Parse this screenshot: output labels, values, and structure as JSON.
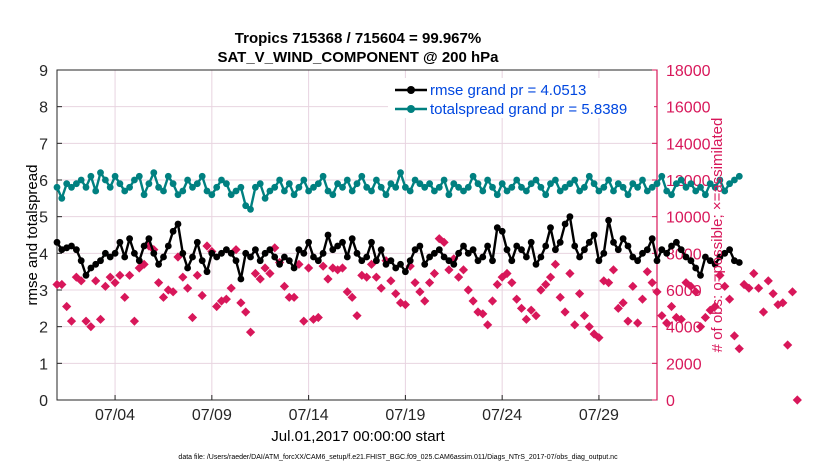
{
  "chart_data": {
    "type": "line",
    "title": "Tropics 715368 / 715604 = 99.967%",
    "subtitle": "SAT_V_WIND_COMPONENT @ 200 hPa",
    "xlabel": "Jul.01,2017 00:00:00 start",
    "ylabel_left": "rmse and totalspread",
    "ylabel_right": "# of obs: o=possible; ×=assimilated",
    "x_range_days": [
      1,
      32
    ],
    "ylim_left": [
      0,
      9
    ],
    "ylim_right": [
      0,
      18000
    ],
    "left_ticks": [
      "0",
      "1",
      "2",
      "3",
      "4",
      "5",
      "6",
      "7",
      "8",
      "9"
    ],
    "right_ticks": [
      "0",
      "2000",
      "4000",
      "6000",
      "8000",
      "10000",
      "12000",
      "14000",
      "16000",
      "18000"
    ],
    "x_ticks": [
      {
        "day": 4,
        "label": "07/04"
      },
      {
        "day": 9,
        "label": "07/09"
      },
      {
        "day": 14,
        "label": "07/14"
      },
      {
        "day": 19,
        "label": "07/19"
      },
      {
        "day": 24,
        "label": "07/24"
      },
      {
        "day": 29,
        "label": "07/29"
      }
    ],
    "legend": [
      {
        "label": "rmse grand pr = 4.0513",
        "color": "#000000"
      },
      {
        "label": "totalspread grand pr = 5.8389",
        "color": "#008080"
      }
    ],
    "series": [
      {
        "name": "rmse",
        "axis": "left",
        "color": "#000000",
        "x_start": 1.0,
        "x_step": 0.25,
        "values": [
          4.3,
          4.1,
          4.15,
          4.2,
          4.1,
          3.8,
          3.4,
          3.6,
          3.7,
          3.8,
          4.0,
          3.9,
          4.0,
          4.3,
          3.9,
          4.4,
          4.0,
          3.8,
          4.2,
          4.4,
          4.0,
          3.7,
          3.9,
          4.2,
          4.6,
          4.8,
          4.0,
          3.6,
          3.9,
          4.3,
          3.8,
          3.5,
          4.0,
          3.9,
          4.0,
          4.1,
          4.0,
          3.8,
          3.3,
          4.0,
          3.9,
          4.1,
          3.8,
          4.0,
          4.1,
          3.9,
          3.7,
          3.9,
          3.8,
          3.6,
          4.1,
          4.0,
          4.3,
          3.9,
          3.8,
          4.0,
          4.5,
          4.1,
          4.2,
          4.3,
          3.9,
          4.4,
          4.0,
          3.8,
          3.9,
          4.3,
          3.8,
          4.1,
          3.7,
          3.8,
          3.6,
          3.7,
          3.5,
          3.8,
          4.1,
          4.2,
          3.7,
          3.9,
          4.0,
          4.1,
          3.9,
          3.8,
          3.7,
          4.0,
          4.2,
          4.0,
          4.1,
          3.8,
          3.9,
          4.2,
          3.8,
          4.7,
          4.6,
          4.1,
          3.8,
          4.2,
          4.1,
          3.9,
          4.3,
          3.7,
          3.9,
          4.2,
          4.7,
          4.1,
          4.3,
          4.8,
          5.0,
          4.2,
          3.9,
          4.1,
          4.3,
          4.5,
          3.8,
          4.0,
          4.9,
          4.3,
          4.1,
          4.4,
          4.2,
          3.9,
          3.8,
          4.0,
          4.1,
          4.4,
          3.8,
          4.1,
          4.0,
          4.2,
          4.3,
          4.1,
          3.9,
          3.8,
          3.6,
          3.4,
          3.9,
          3.8,
          3.7,
          3.9,
          4.0,
          4.1,
          3.8,
          3.75
        ]
      },
      {
        "name": "totalspread",
        "axis": "left",
        "color": "#008080",
        "x_start": 1.0,
        "x_step": 0.25,
        "values": [
          5.8,
          5.5,
          5.9,
          5.8,
          5.9,
          6.0,
          5.8,
          6.1,
          5.7,
          6.2,
          6.0,
          5.8,
          6.1,
          5.9,
          5.7,
          5.8,
          6.0,
          6.1,
          5.6,
          5.9,
          6.2,
          5.8,
          5.7,
          6.1,
          5.9,
          5.6,
          5.7,
          6.0,
          5.8,
          5.9,
          6.1,
          5.7,
          5.6,
          5.8,
          6.0,
          5.9,
          5.6,
          5.7,
          5.8,
          5.3,
          5.2,
          5.8,
          5.9,
          5.5,
          5.7,
          5.8,
          6.0,
          5.7,
          5.9,
          5.6,
          5.8,
          6.0,
          5.7,
          5.8,
          5.9,
          6.1,
          5.7,
          5.6,
          5.9,
          5.8,
          6.0,
          5.7,
          5.9,
          6.1,
          5.8,
          5.7,
          6.0,
          5.8,
          5.6,
          5.9,
          5.8,
          6.2,
          5.8,
          5.7,
          6.0,
          5.9,
          5.8,
          5.9,
          5.7,
          5.8,
          6.0,
          5.6,
          5.9,
          5.8,
          5.7,
          5.8,
          6.1,
          5.9,
          5.7,
          6.0,
          5.8,
          5.6,
          5.9,
          5.7,
          5.8,
          6.0,
          5.8,
          5.7,
          5.9,
          6.0,
          5.8,
          5.6,
          5.9,
          6.0,
          5.7,
          5.8,
          5.9,
          6.0,
          5.7,
          5.8,
          6.1,
          5.9,
          5.7,
          5.8,
          6.0,
          5.7,
          5.9,
          5.8,
          5.6,
          5.9,
          5.8,
          6.0,
          5.7,
          5.8,
          5.9,
          6.1,
          5.7,
          5.6,
          5.9,
          6.0,
          5.8,
          5.9,
          5.7,
          5.8,
          5.6,
          5.9,
          5.8,
          6.0,
          5.7,
          5.9,
          6.0,
          6.1
        ]
      },
      {
        "name": "possible / assimilated obs",
        "axis": "right",
        "color": "#d8175a",
        "x_start": 1.0,
        "x_step": 0.25,
        "values": [
          6300,
          6300,
          5100,
          4300,
          6700,
          6500,
          4300,
          4000,
          6500,
          4400,
          6200,
          6700,
          6400,
          6800,
          5600,
          6800,
          4300,
          7200,
          7400,
          8400,
          8200,
          6400,
          5600,
          6000,
          5900,
          7800,
          6700,
          6100,
          4500,
          6800,
          5700,
          8400,
          8100,
          5100,
          5400,
          5500,
          6100,
          8200,
          5300,
          4800,
          3700,
          6900,
          6600,
          7200,
          6900,
          8300,
          7500,
          6200,
          5600,
          5600,
          7400,
          4300,
          7200,
          4400,
          4500,
          7300,
          6600,
          7200,
          7100,
          7200,
          5900,
          5600,
          4600,
          6800,
          6700,
          7400,
          6700,
          6100,
          7600,
          6500,
          5800,
          5300,
          5200,
          7300,
          6400,
          5900,
          5400,
          6400,
          6900,
          8800,
          8600,
          7100,
          7700,
          6700,
          7100,
          6000,
          5400,
          4800,
          4700,
          4100,
          5400,
          6300,
          6700,
          6900,
          6400,
          5500,
          5000,
          4400,
          4900,
          4600,
          6000,
          6300,
          6700,
          7400,
          5600,
          4800,
          6900,
          4100,
          5800,
          4600,
          4000,
          3600,
          3400,
          6500,
          6400,
          7100,
          5000,
          5300,
          4300,
          6200,
          4200,
          5500,
          7000,
          6400,
          5900,
          4600,
          4200,
          5100,
          4500,
          4400,
          6400,
          6200,
          5900,
          4000,
          4500,
          4900,
          5100,
          6800,
          6200,
          5500,
          3500,
          2800,
          6300,
          6100,
          6900,
          6100,
          4800,
          6500,
          5800,
          5200,
          5300,
          3000,
          5900,
          0
        ]
      }
    ]
  },
  "footer": {
    "data_file": "data file: /Users/raeder/DAI/ATM_forcXX/CAM6_setup/f.e21.FHIST_BGC.f09_025.CAM6assim.011/Diags_NTrS_2017-07/obs_diag_output.nc"
  }
}
